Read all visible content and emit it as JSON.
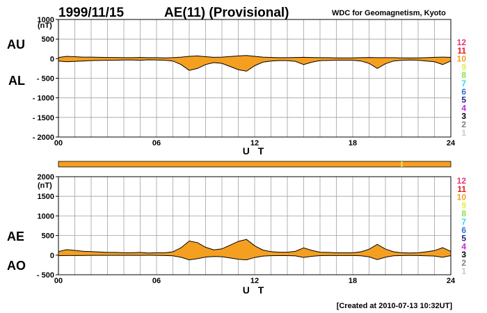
{
  "header": {
    "date": "1999/11/15",
    "title": "AE(11) (Provisional)",
    "org": "WDC for Geomagnetism, Kyoto"
  },
  "footer": {
    "created": "[Created at 2010-07-13 10:32UT]"
  },
  "chart_data": [
    {
      "type": "area",
      "panel": "AU/AL",
      "upper_label": "AU",
      "lower_label": "AL",
      "unit": "(nT)",
      "xlabel": "U T",
      "xlim": [
        0,
        24
      ],
      "ylim": [
        -2000,
        1000
      ],
      "x_ticks": [
        "00",
        "06",
        "12",
        "18",
        "24"
      ],
      "y_ticks": [
        "1000",
        "500",
        "0",
        "- 500",
        "- 1000",
        "- 1500",
        "- 2000"
      ],
      "y_tick_values": [
        1000,
        500,
        0,
        -500,
        -1000,
        -1500,
        -2000
      ],
      "grid": true,
      "series": [
        {
          "name": "AU",
          "x": [
            0,
            0.5,
            1,
            1.5,
            2,
            2.5,
            3,
            3.5,
            4,
            4.5,
            5,
            5.5,
            6,
            6.5,
            7,
            7.5,
            8,
            8.5,
            9,
            9.5,
            10,
            10.5,
            11,
            11.5,
            12,
            12.5,
            13,
            13.5,
            14,
            14.5,
            15,
            15.5,
            16,
            16.5,
            17,
            17.5,
            18,
            18.5,
            19,
            19.5,
            20,
            20.5,
            21,
            21.5,
            22,
            22.5,
            23,
            23.5,
            24
          ],
          "values": [
            30,
            60,
            50,
            40,
            40,
            35,
            30,
            30,
            25,
            25,
            30,
            25,
            25,
            20,
            25,
            40,
            60,
            70,
            50,
            35,
            40,
            55,
            70,
            80,
            60,
            40,
            30,
            25,
            25,
            30,
            35,
            30,
            25,
            25,
            20,
            20,
            20,
            25,
            30,
            25,
            25,
            25,
            20,
            20,
            20,
            25,
            35,
            40,
            35
          ]
        },
        {
          "name": "AL",
          "x": [
            0,
            0.5,
            1,
            1.5,
            2,
            2.5,
            3,
            3.5,
            4,
            4.5,
            5,
            5.5,
            6,
            6.5,
            7,
            7.5,
            8,
            8.5,
            9,
            9.5,
            10,
            10.5,
            11,
            11.5,
            12,
            12.5,
            13,
            13.5,
            14,
            14.5,
            15,
            15.5,
            16,
            16.5,
            17,
            17.5,
            18,
            18.5,
            19,
            19.5,
            20,
            20.5,
            21,
            21.5,
            22,
            22.5,
            23,
            23.5,
            24
          ],
          "values": [
            -60,
            -80,
            -70,
            -60,
            -50,
            -45,
            -40,
            -40,
            -35,
            -35,
            -40,
            -30,
            -35,
            -40,
            -60,
            -150,
            -300,
            -250,
            -150,
            -100,
            -120,
            -200,
            -280,
            -320,
            -180,
            -90,
            -60,
            -50,
            -50,
            -70,
            -150,
            -90,
            -50,
            -45,
            -40,
            -40,
            -40,
            -60,
            -120,
            -250,
            -130,
            -60,
            -40,
            -35,
            -40,
            -60,
            -80,
            -150,
            -60
          ]
        }
      ]
    },
    {
      "type": "bar",
      "panel": "data-availability",
      "color": "#f59f21",
      "marker_x": 21,
      "marker_color": "#e8e84a"
    },
    {
      "type": "area",
      "panel": "AE/AO",
      "upper_label": "AE",
      "lower_label": "AO",
      "unit": "(nT)",
      "xlabel": "U T",
      "xlim": [
        0,
        24
      ],
      "ylim": [
        -500,
        2000
      ],
      "x_ticks": [
        "00",
        "06",
        "12",
        "18",
        "24"
      ],
      "y_ticks": [
        "2000",
        "1500",
        "1000",
        "500",
        "0",
        "- 500"
      ],
      "y_tick_values": [
        2000,
        1500,
        1000,
        500,
        0,
        -500
      ],
      "grid": true,
      "series": [
        {
          "name": "AE",
          "x": [
            0,
            0.5,
            1,
            1.5,
            2,
            2.5,
            3,
            3.5,
            4,
            4.5,
            5,
            5.5,
            6,
            6.5,
            7,
            7.5,
            8,
            8.5,
            9,
            9.5,
            10,
            10.5,
            11,
            11.5,
            12,
            12.5,
            13,
            13.5,
            14,
            14.5,
            15,
            15.5,
            16,
            16.5,
            17,
            17.5,
            18,
            18.5,
            19,
            19.5,
            20,
            20.5,
            21,
            21.5,
            22,
            22.5,
            23,
            23.5,
            24
          ],
          "values": [
            90,
            140,
            120,
            100,
            90,
            80,
            70,
            70,
            60,
            60,
            70,
            55,
            60,
            60,
            85,
            190,
            360,
            320,
            200,
            135,
            160,
            255,
            350,
            400,
            240,
            130,
            90,
            75,
            75,
            100,
            185,
            120,
            75,
            70,
            60,
            60,
            60,
            85,
            150,
            275,
            155,
            85,
            60,
            55,
            60,
            85,
            115,
            190,
            95
          ]
        },
        {
          "name": "AO",
          "x": [
            0,
            0.5,
            1,
            1.5,
            2,
            2.5,
            3,
            3.5,
            4,
            4.5,
            5,
            5.5,
            6,
            6.5,
            7,
            7.5,
            8,
            8.5,
            9,
            9.5,
            10,
            10.5,
            11,
            11.5,
            12,
            12.5,
            13,
            13.5,
            14,
            14.5,
            15,
            15.5,
            16,
            16.5,
            17,
            17.5,
            18,
            18.5,
            19,
            19.5,
            20,
            20.5,
            21,
            21.5,
            22,
            22.5,
            23,
            23.5,
            24
          ],
          "values": [
            -15,
            -10,
            -10,
            -10,
            -5,
            -5,
            -5,
            -5,
            -5,
            -5,
            -5,
            -3,
            -5,
            -10,
            -18,
            -55,
            -120,
            -90,
            -50,
            -33,
            -40,
            -73,
            -105,
            -120,
            -60,
            -25,
            -15,
            -13,
            -13,
            -20,
            -58,
            -30,
            -13,
            -10,
            -10,
            -10,
            -10,
            -18,
            -45,
            -113,
            -53,
            -18,
            -10,
            -8,
            -10,
            -18,
            -23,
            -55,
            -13
          ]
        }
      ]
    }
  ],
  "legend": {
    "items": [
      {
        "label": "12",
        "color": "#e8357a"
      },
      {
        "label": "11",
        "color": "#e31a1c"
      },
      {
        "label": "10",
        "color": "#f59f21"
      },
      {
        "label": "9",
        "color": "#e8e84a"
      },
      {
        "label": "8",
        "color": "#7ee84a"
      },
      {
        "label": "7",
        "color": "#3fd3e3"
      },
      {
        "label": "6",
        "color": "#2a6fe8"
      },
      {
        "label": "5",
        "color": "#23238e"
      },
      {
        "label": "4",
        "color": "#c323e3"
      },
      {
        "label": "3",
        "color": "#000000"
      },
      {
        "label": "2",
        "color": "#808080"
      },
      {
        "label": "1",
        "color": "#c8c8c8"
      }
    ]
  }
}
